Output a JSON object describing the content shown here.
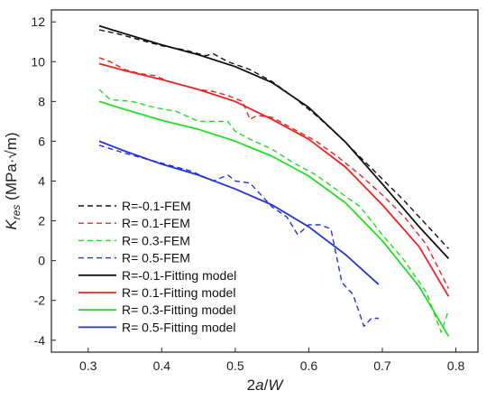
{
  "chart_data": {
    "type": "line",
    "xlabel": "2a/W",
    "ylabel": "K_res (MPa·√m)",
    "ylabel_parts": {
      "main": "K",
      "sub": "res",
      "unit": " (MPa·√m)"
    },
    "xlabel_parts": {
      "num": "2",
      "var": "a",
      "sep": "/",
      "den": "W"
    },
    "xlim": [
      0.25,
      0.83
    ],
    "ylim": [
      -4.6,
      12.6
    ],
    "xticks": [
      0.3,
      0.4,
      0.5,
      0.6,
      0.7,
      0.8
    ],
    "yticks": [
      -4,
      -2,
      0,
      2,
      4,
      6,
      8,
      10,
      12
    ],
    "legend_position": "bottom-left",
    "series": [
      {
        "name": "R=-0.1-FEM",
        "color": "#111111",
        "dashed": true,
        "x": [
          0.315,
          0.34,
          0.37,
          0.4,
          0.43,
          0.46,
          0.47,
          0.49,
          0.52,
          0.55,
          0.58,
          0.61,
          0.64,
          0.67,
          0.7,
          0.73,
          0.76,
          0.79
        ],
        "y": [
          11.6,
          11.4,
          11.1,
          10.8,
          10.6,
          10.3,
          10.4,
          10.0,
          9.6,
          9.0,
          8.2,
          7.3,
          6.3,
          5.2,
          4.1,
          3.0,
          1.8,
          0.6
        ]
      },
      {
        "name": "R= 0.1-FEM",
        "color": "#ee2222",
        "dashed": true,
        "x": [
          0.315,
          0.33,
          0.35,
          0.37,
          0.39,
          0.41,
          0.43,
          0.45,
          0.47,
          0.49,
          0.51,
          0.52,
          0.53,
          0.55,
          0.58,
          0.61,
          0.64,
          0.67,
          0.7,
          0.73,
          0.76,
          0.79
        ],
        "y": [
          10.2,
          10.0,
          9.6,
          9.4,
          9.3,
          9.0,
          8.8,
          8.6,
          8.5,
          8.3,
          8.0,
          7.1,
          7.3,
          7.2,
          6.6,
          6.0,
          5.2,
          4.3,
          3.3,
          2.2,
          0.8,
          -1.4
        ]
      },
      {
        "name": "R= 0.3-FEM",
        "color": "#22dd22",
        "dashed": true,
        "x": [
          0.315,
          0.33,
          0.36,
          0.39,
          0.42,
          0.45,
          0.47,
          0.49,
          0.5,
          0.52,
          0.55,
          0.58,
          0.61,
          0.64,
          0.67,
          0.7,
          0.73,
          0.76,
          0.78,
          0.79
        ],
        "y": [
          8.6,
          8.1,
          8.0,
          7.7,
          7.5,
          7.0,
          7.0,
          7.0,
          6.5,
          6.1,
          5.6,
          4.9,
          4.3,
          3.5,
          2.7,
          1.3,
          0.0,
          -1.6,
          -3.6,
          -2.5
        ]
      },
      {
        "name": "R= 0.5-FEM",
        "color": "#2233dd",
        "dashed": true,
        "x": [
          0.315,
          0.35,
          0.38,
          0.41,
          0.44,
          0.47,
          0.49,
          0.5,
          0.52,
          0.55,
          0.57,
          0.585,
          0.6,
          0.615,
          0.63,
          0.645,
          0.66,
          0.675,
          0.685,
          0.695
        ],
        "y": [
          5.8,
          5.4,
          5.1,
          4.8,
          4.5,
          4.0,
          4.3,
          4.0,
          3.9,
          2.7,
          2.2,
          1.3,
          1.8,
          1.8,
          1.6,
          -1.1,
          -1.7,
          -3.3,
          -2.9,
          -2.9
        ]
      },
      {
        "name": "R=-0.1-Fitting model",
        "color": "#111111",
        "dashed": false,
        "x": [
          0.315,
          0.35,
          0.4,
          0.45,
          0.5,
          0.55,
          0.6,
          0.65,
          0.7,
          0.75,
          0.79
        ],
        "y": [
          11.8,
          11.4,
          10.85,
          10.35,
          9.75,
          8.95,
          7.7,
          5.95,
          3.85,
          1.7,
          0.1
        ]
      },
      {
        "name": "R= 0.1-Fitting model",
        "color": "#ee2222",
        "dashed": false,
        "x": [
          0.315,
          0.35,
          0.4,
          0.45,
          0.5,
          0.55,
          0.6,
          0.65,
          0.7,
          0.75,
          0.79
        ],
        "y": [
          9.9,
          9.55,
          9.1,
          8.6,
          8.0,
          7.1,
          6.1,
          4.7,
          2.8,
          0.7,
          -1.8
        ]
      },
      {
        "name": "R= 0.3-Fitting model",
        "color": "#22dd22",
        "dashed": false,
        "x": [
          0.315,
          0.35,
          0.4,
          0.45,
          0.5,
          0.55,
          0.6,
          0.65,
          0.7,
          0.75,
          0.79
        ],
        "y": [
          8.0,
          7.6,
          7.05,
          6.6,
          6.0,
          5.25,
          4.25,
          2.9,
          1.0,
          -1.3,
          -3.8
        ]
      },
      {
        "name": "R= 0.5-Fitting model",
        "color": "#2233dd",
        "dashed": false,
        "x": [
          0.315,
          0.35,
          0.4,
          0.45,
          0.5,
          0.55,
          0.6,
          0.65,
          0.695
        ],
        "y": [
          6.0,
          5.5,
          4.85,
          4.3,
          3.6,
          2.8,
          1.7,
          0.3,
          -1.2
        ]
      }
    ]
  }
}
